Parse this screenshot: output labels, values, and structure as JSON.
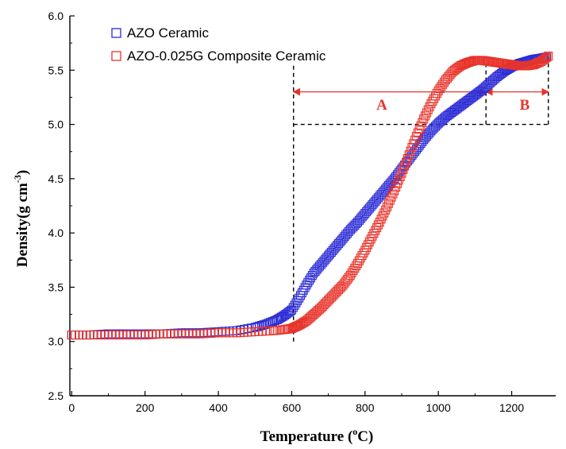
{
  "chart_data": {
    "type": "scatter",
    "xlabel": "Temperature (°C)",
    "ylabel": "Density(g cm⁻³)",
    "xlim": [
      -5,
      1320
    ],
    "ylim": [
      2.5,
      6.0
    ],
    "x_ticks": [
      0,
      200,
      400,
      600,
      800,
      1000,
      1200
    ],
    "y_ticks": [
      "2.5",
      "3.0",
      "3.5",
      "4.0",
      "4.5",
      "5.0",
      "5.5",
      "6.0"
    ],
    "grid": false,
    "legend_position": "top-left",
    "series": [
      {
        "name": "AZO Ceramic",
        "marker": "open-square",
        "color": "#2b2bd6",
        "points": [
          [
            0,
            3.06
          ],
          [
            50,
            3.06
          ],
          [
            100,
            3.07
          ],
          [
            150,
            3.07
          ],
          [
            200,
            3.07
          ],
          [
            250,
            3.07
          ],
          [
            300,
            3.08
          ],
          [
            350,
            3.08
          ],
          [
            400,
            3.09
          ],
          [
            450,
            3.1
          ],
          [
            500,
            3.13
          ],
          [
            530,
            3.16
          ],
          [
            560,
            3.2
          ],
          [
            580,
            3.24
          ],
          [
            600,
            3.29
          ],
          [
            620,
            3.4
          ],
          [
            640,
            3.52
          ],
          [
            660,
            3.63
          ],
          [
            680,
            3.71
          ],
          [
            700,
            3.79
          ],
          [
            720,
            3.87
          ],
          [
            740,
            3.95
          ],
          [
            760,
            4.03
          ],
          [
            780,
            4.1
          ],
          [
            800,
            4.18
          ],
          [
            820,
            4.26
          ],
          [
            840,
            4.34
          ],
          [
            860,
            4.42
          ],
          [
            880,
            4.5
          ],
          [
            900,
            4.59
          ],
          [
            920,
            4.68
          ],
          [
            940,
            4.77
          ],
          [
            960,
            4.86
          ],
          [
            980,
            4.94
          ],
          [
            1000,
            5.01
          ],
          [
            1020,
            5.07
          ],
          [
            1040,
            5.12
          ],
          [
            1060,
            5.17
          ],
          [
            1080,
            5.22
          ],
          [
            1100,
            5.27
          ],
          [
            1120,
            5.32
          ],
          [
            1140,
            5.38
          ],
          [
            1160,
            5.44
          ],
          [
            1180,
            5.49
          ],
          [
            1200,
            5.53
          ],
          [
            1220,
            5.56
          ],
          [
            1240,
            5.58
          ],
          [
            1260,
            5.6
          ],
          [
            1280,
            5.61
          ],
          [
            1295,
            5.62
          ]
        ]
      },
      {
        "name": "AZO-0.025G Composite Ceramic",
        "marker": "open-square",
        "color": "#e8332a",
        "points": [
          [
            0,
            3.06
          ],
          [
            50,
            3.06
          ],
          [
            100,
            3.06
          ],
          [
            150,
            3.06
          ],
          [
            200,
            3.06
          ],
          [
            250,
            3.07
          ],
          [
            300,
            3.07
          ],
          [
            350,
            3.07
          ],
          [
            400,
            3.08
          ],
          [
            450,
            3.08
          ],
          [
            500,
            3.09
          ],
          [
            550,
            3.1
          ],
          [
            580,
            3.11
          ],
          [
            600,
            3.12
          ],
          [
            620,
            3.15
          ],
          [
            640,
            3.19
          ],
          [
            660,
            3.25
          ],
          [
            680,
            3.31
          ],
          [
            700,
            3.38
          ],
          [
            720,
            3.45
          ],
          [
            740,
            3.52
          ],
          [
            760,
            3.61
          ],
          [
            780,
            3.72
          ],
          [
            800,
            3.84
          ],
          [
            820,
            3.97
          ],
          [
            840,
            4.1
          ],
          [
            860,
            4.24
          ],
          [
            880,
            4.39
          ],
          [
            900,
            4.55
          ],
          [
            920,
            4.72
          ],
          [
            940,
            4.89
          ],
          [
            960,
            5.05
          ],
          [
            980,
            5.19
          ],
          [
            1000,
            5.31
          ],
          [
            1020,
            5.41
          ],
          [
            1040,
            5.49
          ],
          [
            1060,
            5.54
          ],
          [
            1080,
            5.57
          ],
          [
            1100,
            5.59
          ],
          [
            1120,
            5.59
          ],
          [
            1140,
            5.58
          ],
          [
            1160,
            5.57
          ],
          [
            1180,
            5.56
          ],
          [
            1200,
            5.55
          ],
          [
            1220,
            5.54
          ],
          [
            1240,
            5.54
          ],
          [
            1260,
            5.55
          ],
          [
            1280,
            5.58
          ],
          [
            1300,
            5.63
          ]
        ]
      }
    ],
    "annotations": {
      "region_A": {
        "label": "A",
        "x_from": 605,
        "x_to": 1130,
        "y": 5.3
      },
      "region_B": {
        "label": "B",
        "x_from": 1130,
        "x_to": 1300,
        "y": 5.3
      },
      "reference_lines": [
        {
          "type": "vertical",
          "x": 605,
          "y_from": 3.0,
          "y_to": 5.55
        },
        {
          "type": "vertical",
          "x": 1130,
          "y_from": 5.0,
          "y_to": 5.62
        },
        {
          "type": "vertical",
          "x": 1300,
          "y_from": 5.0,
          "y_to": 5.62
        },
        {
          "type": "horizontal",
          "y": 5.0,
          "x_from": 605,
          "x_to": 1300
        }
      ]
    }
  }
}
